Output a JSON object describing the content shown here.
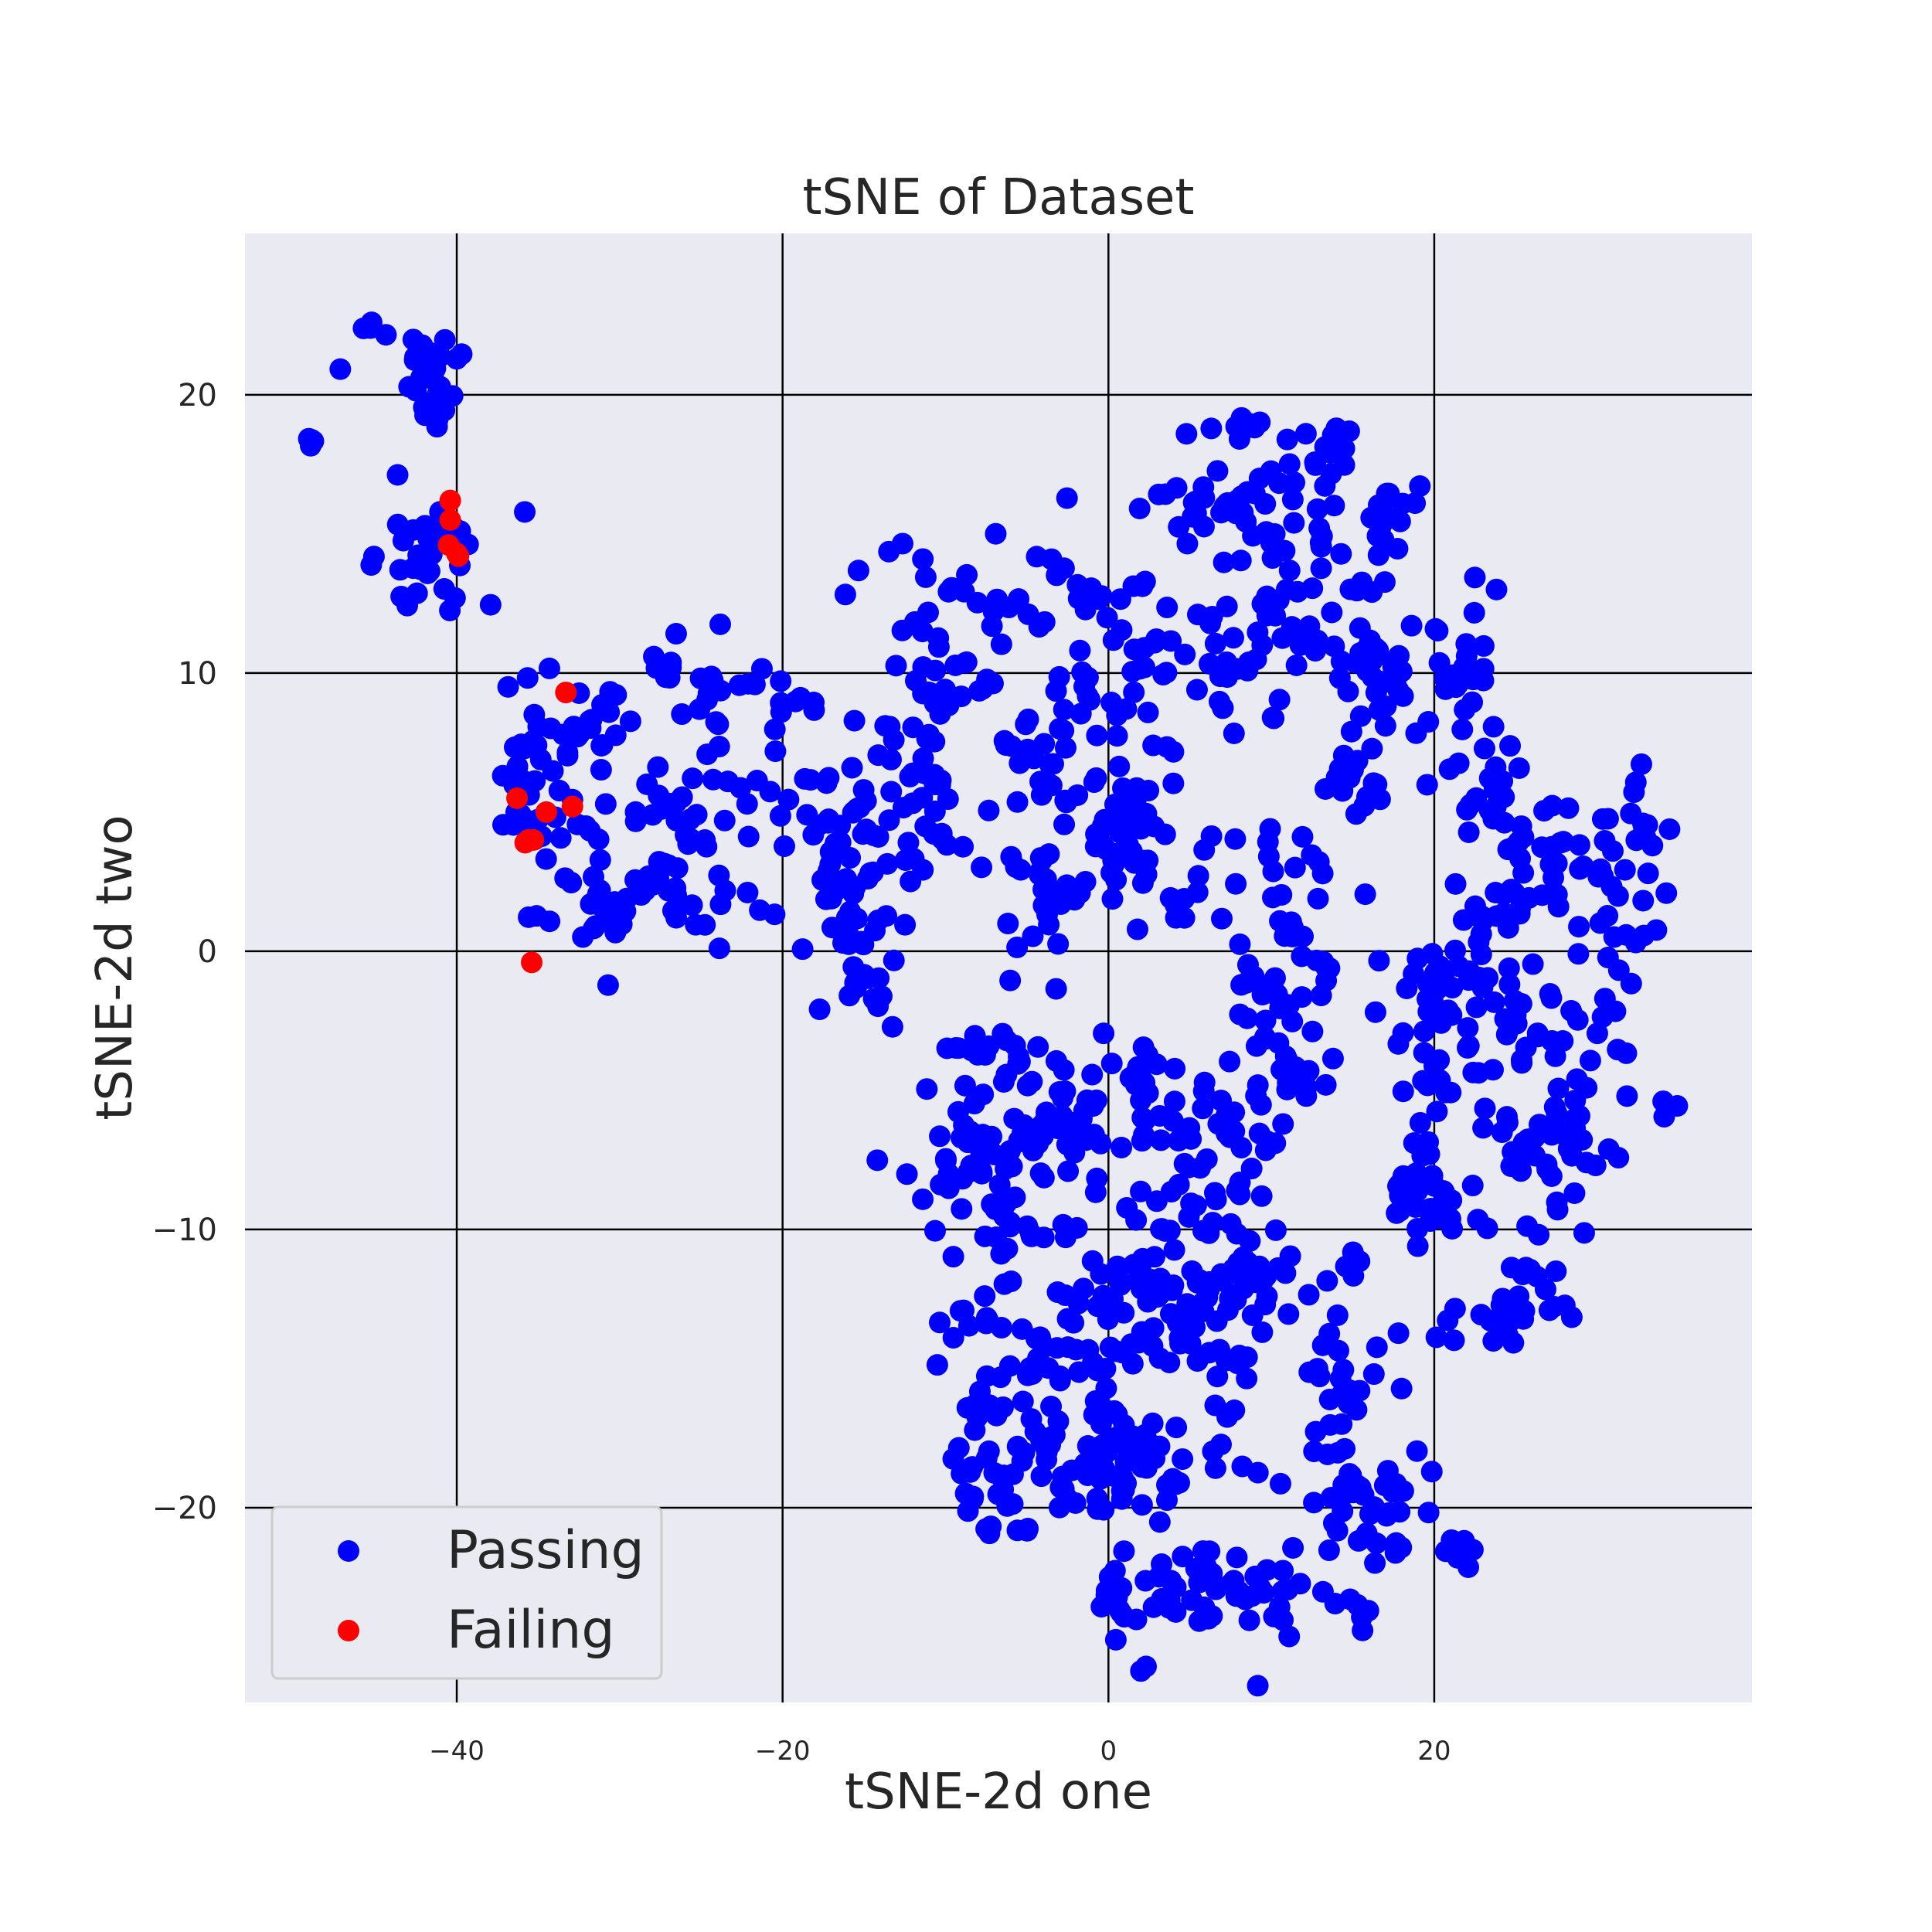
{
  "chart_data": {
    "type": "scatter",
    "title": "tSNE of Dataset",
    "xlabel": "tSNE-2d one",
    "ylabel": "tSNE-2d two",
    "xlim": [
      -53,
      39.5
    ],
    "ylim": [
      -27,
      25.8
    ],
    "xticks": [
      -40,
      -20,
      0,
      20
    ],
    "yticks": [
      -20,
      -10,
      0,
      10,
      20
    ],
    "grid": true,
    "legend_position": "lower-left",
    "colors": {
      "plot_bg": "#eaeaf2",
      "grid": "#000000",
      "passing": "#0000ff",
      "failing": "#ff0000"
    },
    "series": [
      {
        "name": "Passing",
        "clusters": [
          {
            "cx": -45,
            "cy": 22.4,
            "sx": 0.4,
            "sy": 0.3,
            "n": 4
          },
          {
            "cx": -48.8,
            "cy": 18.3,
            "sx": 0.3,
            "sy": 0.2,
            "n": 4
          },
          {
            "cx": -47,
            "cy": 21.1,
            "sx": 0.2,
            "sy": 0.2,
            "n": 1
          },
          {
            "cx": -41.5,
            "cy": 20.4,
            "sx": 1.0,
            "sy": 0.8,
            "n": 26
          },
          {
            "cx": -41.5,
            "cy": 14.3,
            "sx": 1.6,
            "sy": 1.2,
            "n": 34
          },
          {
            "cx": -34.5,
            "cy": 7.2,
            "sx": 1.8,
            "sy": 1.6,
            "n": 36
          },
          {
            "cx": -34.5,
            "cy": 4.4,
            "sx": 1.4,
            "sy": 0.8,
            "n": 14
          },
          {
            "cx": -35.2,
            "cy": 1.2,
            "sx": 0.3,
            "sy": 0.3,
            "n": 2
          },
          {
            "cx": -30.5,
            "cy": 2.3,
            "sx": 2.2,
            "sy": 1.4,
            "n": 28
          },
          {
            "cx": -30.3,
            "cy": 8.4,
            "sx": 1.2,
            "sy": 0.8,
            "n": 10
          },
          {
            "cx": -24.5,
            "cy": 9.8,
            "sx": 1.8,
            "sy": 1.0,
            "n": 20
          },
          {
            "cx": -24.0,
            "cy": 5.8,
            "sx": 2.6,
            "sy": 1.2,
            "n": 30
          },
          {
            "cx": -25.3,
            "cy": 2.6,
            "sx": 1.8,
            "sy": 1.3,
            "n": 24
          },
          {
            "cx": -19.5,
            "cy": 8.2,
            "sx": 1.0,
            "sy": 0.7,
            "n": 6
          },
          {
            "cx": -16.2,
            "cy": 4.3,
            "sx": 1.5,
            "sy": 1.6,
            "n": 30
          },
          {
            "cx": -15.5,
            "cy": 0.5,
            "sx": 1.7,
            "sy": 1.0,
            "n": 22
          },
          {
            "cx": -14.5,
            "cy": -1.4,
            "sx": 1.4,
            "sy": 0.6,
            "n": 10
          },
          {
            "cx": -12.2,
            "cy": 6.2,
            "sx": 1.6,
            "sy": 1.2,
            "n": 30
          },
          {
            "cx": -11.5,
            "cy": 3.8,
            "sx": 1.8,
            "sy": 1.0,
            "n": 16
          },
          {
            "cx": -11.3,
            "cy": 9.8,
            "sx": 1.2,
            "sy": 1.0,
            "n": 18
          },
          {
            "cx": -9.5,
            "cy": 12.6,
            "sx": 3.0,
            "sy": 1.0,
            "n": 22
          },
          {
            "cx": -3.7,
            "cy": 7.4,
            "sx": 1.7,
            "sy": 1.6,
            "n": 30
          },
          {
            "cx": -3.0,
            "cy": 2.3,
            "sx": 1.6,
            "sy": 1.4,
            "n": 30
          },
          {
            "cx": -3.0,
            "cy": 12.6,
            "sx": 2.0,
            "sy": 1.0,
            "n": 16
          },
          {
            "cx": 1.3,
            "cy": 10.9,
            "sx": 1.3,
            "sy": 1.7,
            "n": 26
          },
          {
            "cx": 1.5,
            "cy": 5.6,
            "sx": 1.5,
            "sy": 1.4,
            "n": 26
          },
          {
            "cx": 1.0,
            "cy": 3.6,
            "sx": 1.5,
            "sy": 0.9,
            "n": 18
          },
          {
            "cx": 5.5,
            "cy": 2.0,
            "sx": 1.6,
            "sy": 1.2,
            "n": 14
          },
          {
            "cx": 5.5,
            "cy": 16.5,
            "sx": 2.5,
            "sy": 1.5,
            "n": 18
          },
          {
            "cx": 8.2,
            "cy": 10.2,
            "sx": 1.5,
            "sy": 1.4,
            "n": 26
          },
          {
            "cx": 9.5,
            "cy": 15.6,
            "sx": 1.8,
            "sy": 1.2,
            "n": 28
          },
          {
            "cx": 13.2,
            "cy": 16.6,
            "sx": 1.6,
            "sy": 1.3,
            "n": 20
          },
          {
            "cx": 13.0,
            "cy": 11.5,
            "sx": 1.8,
            "sy": 1.3,
            "n": 24
          },
          {
            "cx": 16.5,
            "cy": 10.2,
            "sx": 1.6,
            "sy": 1.6,
            "n": 30
          },
          {
            "cx": 16.0,
            "cy": 6.4,
            "sx": 1.6,
            "sy": 1.0,
            "n": 18
          },
          {
            "cx": 17.4,
            "cy": 15.6,
            "sx": 1.2,
            "sy": 1.2,
            "n": 14
          },
          {
            "cx": 21.5,
            "cy": 10.4,
            "sx": 1.3,
            "sy": 1.6,
            "n": 26
          },
          {
            "cx": 23.8,
            "cy": 5.2,
            "sx": 1.6,
            "sy": 1.2,
            "n": 20
          },
          {
            "cx": 24.0,
            "cy": 2.0,
            "sx": 1.8,
            "sy": 1.4,
            "n": 20
          },
          {
            "cx": 28.0,
            "cy": 3.4,
            "sx": 2.5,
            "sy": 1.4,
            "n": 24
          },
          {
            "cx": 31.5,
            "cy": 1.0,
            "sx": 1.2,
            "sy": 2.0,
            "n": 24
          },
          {
            "cx": 32.7,
            "cy": 4.9,
            "sx": 0.6,
            "sy": 0.9,
            "n": 10
          },
          {
            "cx": 20.0,
            "cy": -0.9,
            "sx": 1.9,
            "sy": 1.3,
            "n": 30
          },
          {
            "cx": 20.5,
            "cy": -4.6,
            "sx": 1.5,
            "sy": 1.8,
            "n": 22
          },
          {
            "cx": 19.6,
            "cy": -8.5,
            "sx": 1.4,
            "sy": 1.2,
            "n": 22
          },
          {
            "cx": 26.5,
            "cy": -2.8,
            "sx": 1.6,
            "sy": 1.8,
            "n": 30
          },
          {
            "cx": 26.6,
            "cy": -7.8,
            "sx": 1.4,
            "sy": 1.4,
            "n": 26
          },
          {
            "cx": 29.5,
            "cy": -5.8,
            "sx": 1.6,
            "sy": 1.2,
            "n": 16
          },
          {
            "cx": 26.0,
            "cy": -12.4,
            "sx": 1.8,
            "sy": 0.8,
            "n": 20
          },
          {
            "cx": 34.6,
            "cy": -5.7,
            "sx": 1.0,
            "sy": 0.3,
            "n": 3
          },
          {
            "cx": 11.5,
            "cy": 2.0,
            "sx": 1.1,
            "sy": 1.4,
            "n": 18
          },
          {
            "cx": 11.0,
            "cy": -1.8,
            "sx": 1.5,
            "sy": 1.3,
            "n": 30
          },
          {
            "cx": 11.0,
            "cy": -4.4,
            "sx": 1.4,
            "sy": 1.0,
            "n": 14
          },
          {
            "cx": 5.8,
            "cy": -6.6,
            "sx": 2.8,
            "sy": 1.4,
            "n": 40
          },
          {
            "cx": 2.0,
            "cy": -4.4,
            "sx": 1.6,
            "sy": 1.0,
            "n": 16
          },
          {
            "cx": 5.0,
            "cy": -9.0,
            "sx": 2.0,
            "sy": 0.9,
            "n": 18
          },
          {
            "cx": -1.8,
            "cy": -7.0,
            "sx": 1.6,
            "sy": 1.2,
            "n": 20
          },
          {
            "cx": -2.5,
            "cy": -4.5,
            "sx": 1.2,
            "sy": 0.8,
            "n": 10
          },
          {
            "cx": -6.8,
            "cy": -4.0,
            "sx": 2.0,
            "sy": 0.8,
            "n": 20
          },
          {
            "cx": -8.5,
            "cy": -7.2,
            "sx": 2.3,
            "sy": 1.1,
            "n": 30
          },
          {
            "cx": -6.0,
            "cy": -10.0,
            "sx": 1.7,
            "sy": 1.0,
            "n": 24
          },
          {
            "cx": -5.0,
            "cy": -6.5,
            "sx": 1.2,
            "sy": 0.8,
            "n": 10
          },
          {
            "cx": 1.8,
            "cy": -11.6,
            "sx": 1.5,
            "sy": 1.0,
            "n": 20
          },
          {
            "cx": 3.0,
            "cy": -13.2,
            "sx": 1.8,
            "sy": 1.0,
            "n": 22
          },
          {
            "cx": 6.5,
            "cy": -12.4,
            "sx": 1.6,
            "sy": 1.3,
            "n": 30
          },
          {
            "cx": 6.8,
            "cy": -15.6,
            "sx": 1.5,
            "sy": 1.2,
            "n": 18
          },
          {
            "cx": 10.2,
            "cy": -11.6,
            "sx": 1.4,
            "sy": 0.8,
            "n": 14
          },
          {
            "cx": -1.5,
            "cy": -12.8,
            "sx": 1.4,
            "sy": 1.2,
            "n": 16
          },
          {
            "cx": -1.0,
            "cy": -15.0,
            "sx": 1.6,
            "sy": 1.0,
            "n": 14
          },
          {
            "cx": -5.5,
            "cy": -15.5,
            "sx": 1.8,
            "sy": 1.3,
            "n": 22
          },
          {
            "cx": -8.2,
            "cy": -13.8,
            "sx": 1.2,
            "sy": 1.2,
            "n": 14
          },
          {
            "cx": -4.0,
            "cy": -18.2,
            "sx": 2.0,
            "sy": 1.2,
            "n": 24
          },
          {
            "cx": -6.6,
            "cy": -20.0,
            "sx": 1.4,
            "sy": 0.8,
            "n": 12
          },
          {
            "cx": -8.5,
            "cy": -18.0,
            "sx": 0.8,
            "sy": 1.2,
            "n": 10
          },
          {
            "cx": 0.6,
            "cy": -19.4,
            "sx": 1.4,
            "sy": 1.2,
            "n": 18
          },
          {
            "cx": 1.5,
            "cy": -17.2,
            "sx": 1.2,
            "sy": 0.8,
            "n": 10
          },
          {
            "cx": 3.8,
            "cy": -18.6,
            "sx": 1.2,
            "sy": 1.0,
            "n": 14
          },
          {
            "cx": 0.8,
            "cy": -23.4,
            "sx": 1.4,
            "sy": 0.8,
            "n": 16
          },
          {
            "cx": 5.5,
            "cy": -22.8,
            "sx": 1.8,
            "sy": 0.8,
            "n": 22
          },
          {
            "cx": 9.6,
            "cy": -22.8,
            "sx": 1.6,
            "sy": 1.0,
            "n": 22
          },
          {
            "cx": 14.5,
            "cy": -16.2,
            "sx": 1.4,
            "sy": 1.8,
            "n": 30
          },
          {
            "cx": 14.2,
            "cy": -20.3,
            "sx": 1.8,
            "sy": 1.0,
            "n": 24
          },
          {
            "cx": 17.5,
            "cy": -19.5,
            "sx": 1.2,
            "sy": 1.0,
            "n": 14
          },
          {
            "cx": 19.2,
            "cy": -9.5,
            "sx": 1.2,
            "sy": 0.8,
            "n": 10
          },
          {
            "cx": 21.0,
            "cy": -21.7,
            "sx": 1.0,
            "sy": 0.5,
            "n": 6
          },
          {
            "cx": 15.5,
            "cy": -23.6,
            "sx": 0.8,
            "sy": 0.6,
            "n": 5
          },
          {
            "cx": 2.0,
            "cy": -25.5,
            "sx": 0.2,
            "sy": 0.4,
            "n": 2
          },
          {
            "cx": 24.0,
            "cy": -13.5,
            "sx": 1.0,
            "sy": 0.6,
            "n": 8
          },
          {
            "cx": 15.2,
            "cy": -11.4,
            "sx": 0.5,
            "sy": 0.6,
            "n": 4
          },
          {
            "cx": 20.5,
            "cy": -13.4,
            "sx": 0.6,
            "sy": 0.4,
            "n": 3
          },
          {
            "cx": 8.0,
            "cy": 18.8,
            "sx": 0.9,
            "sy": 0.3,
            "n": 6
          },
          {
            "cx": 14.0,
            "cy": 18.6,
            "sx": 0.5,
            "sy": 0.2,
            "n": 3
          }
        ]
      },
      {
        "name": "Failing",
        "points": [
          [
            -40.4,
            16.2
          ],
          [
            -40.4,
            15.5
          ],
          [
            -40.5,
            14.6
          ],
          [
            -40.0,
            14.3
          ],
          [
            -39.9,
            14.2
          ],
          [
            -33.3,
            9.3
          ],
          [
            -36.3,
            5.5
          ],
          [
            -32.9,
            5.2
          ],
          [
            -34.5,
            5.0
          ],
          [
            -35.6,
            4.0
          ],
          [
            -35.3,
            4.0
          ],
          [
            -35.8,
            3.9
          ],
          [
            -35.4,
            -0.4
          ]
        ]
      }
    ]
  }
}
